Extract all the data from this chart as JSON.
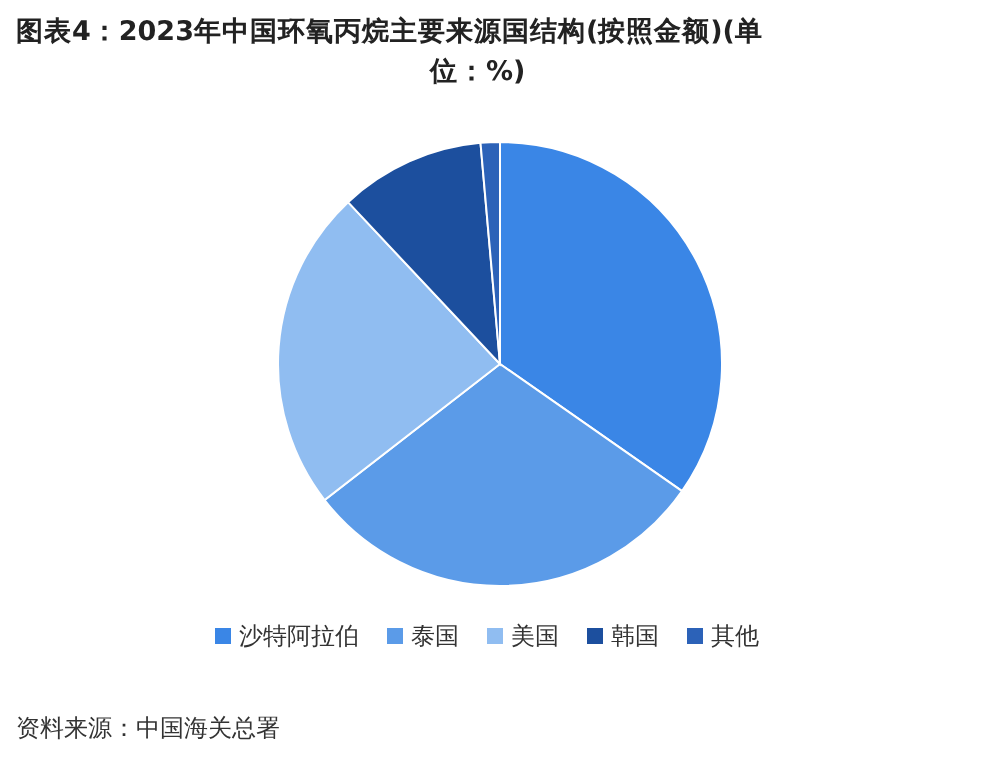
{
  "chart_data": {
    "type": "pie",
    "title": "图表4：2023年中国环氧丙烷主要来源国结构(按照金额)(单位：%)",
    "categories": [
      "沙特阿拉伯",
      "泰国",
      "美国",
      "韩国",
      "其他"
    ],
    "values": [
      34.7,
      29.8,
      23.5,
      10.6,
      1.4
    ],
    "colors": [
      "#3a86e6",
      "#5b9be8",
      "#90bdf1",
      "#1c4f9e",
      "#2c62b8"
    ],
    "legend": "bottom",
    "annotations": [
      "资料来源：中国海关总署"
    ]
  }
}
